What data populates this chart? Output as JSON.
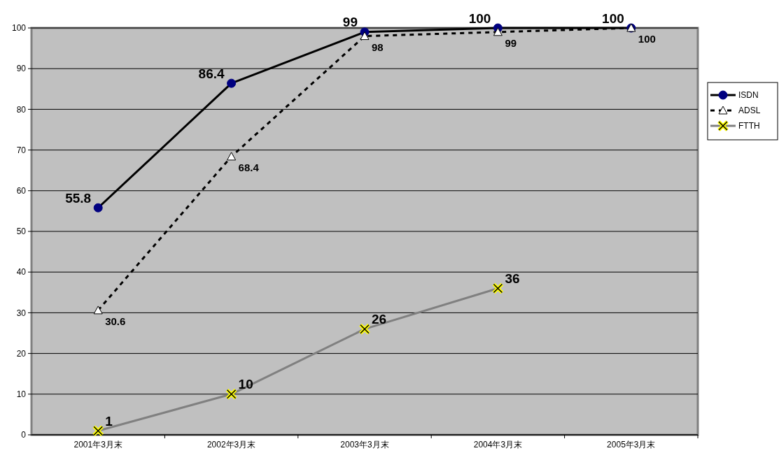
{
  "chart_data": {
    "type": "line",
    "categories": [
      "2001年3月末",
      "2002年3月末",
      "2003年3月末",
      "2004年3月末",
      "2005年3月末"
    ],
    "series": [
      {
        "name": "ISDN",
        "color": "#000000",
        "marker": "circle",
        "line_style": "solid",
        "values": [
          55.8,
          86.4,
          99,
          100,
          100
        ]
      },
      {
        "name": "ADSL",
        "color": "#000000",
        "marker": "triangle",
        "line_style": "dashed",
        "values": [
          30.6,
          68.4,
          98,
          99,
          100
        ]
      },
      {
        "name": "FTTH",
        "color": "#808080",
        "marker": "cross",
        "line_style": "solid",
        "values": [
          1,
          10,
          26,
          36,
          null
        ]
      }
    ],
    "ylim": [
      0,
      100
    ],
    "yticks": [
      0,
      10,
      20,
      30,
      40,
      50,
      60,
      70,
      80,
      90,
      100
    ],
    "grid": "y",
    "legend": "right",
    "data_labels": true
  }
}
